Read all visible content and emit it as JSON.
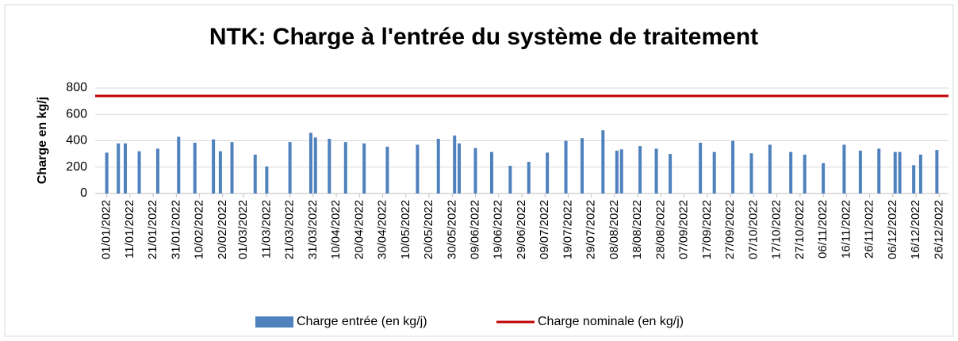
{
  "chart_data": {
    "type": "bar",
    "title": "NTK: Charge à l'entrée du système de traitement",
    "y_label": "Charge en kg/j",
    "ylim": [
      0,
      800
    ],
    "yticks": [
      0,
      200,
      400,
      600,
      800
    ],
    "grid": true,
    "xlim": [
      "27/12/2021",
      "30/12/2022"
    ],
    "xticks": [
      "01/01/2022",
      "11/01/2022",
      "21/01/2022",
      "31/01/2022",
      "10/02/2022",
      "20/02/2022",
      "01/03/2022",
      "11/03/2022",
      "21/03/2022",
      "31/03/2022",
      "10/04/2022",
      "20/04/2022",
      "30/04/2022",
      "10/05/2022",
      "20/05/2022",
      "30/05/2022",
      "09/06/2022",
      "19/06/2022",
      "29/06/2022",
      "09/07/2022",
      "19/07/2022",
      "29/07/2022",
      "08/08/2022",
      "18/08/2022",
      "28/08/2022",
      "07/09/2022",
      "17/09/2022",
      "27/09/2022",
      "07/10/2022",
      "17/10/2022",
      "27/10/2022",
      "06/11/2022",
      "16/11/2022",
      "26/11/2022",
      "06/12/2022",
      "16/12/2022",
      "26/12/2022"
    ],
    "legend": "bottom",
    "series": [
      {
        "name": "Charge entrée (en kg/j)",
        "color": "#4f81bd",
        "type": "bar",
        "x": [
          "01/01/2022",
          "06/01/2022",
          "09/01/2022",
          "15/01/2022",
          "23/01/2022",
          "01/02/2022",
          "08/02/2022",
          "16/02/2022",
          "19/02/2022",
          "24/02/2022",
          "06/03/2022",
          "11/03/2022",
          "21/03/2022",
          "30/03/2022",
          "01/04/2022",
          "07/04/2022",
          "14/04/2022",
          "22/04/2022",
          "02/05/2022",
          "15/05/2022",
          "24/05/2022",
          "31/05/2022",
          "02/06/2022",
          "09/06/2022",
          "16/06/2022",
          "24/06/2022",
          "02/07/2022",
          "10/07/2022",
          "18/07/2022",
          "25/07/2022",
          "03/08/2022",
          "09/08/2022",
          "11/08/2022",
          "19/08/2022",
          "26/08/2022",
          "01/09/2022",
          "14/09/2022",
          "20/09/2022",
          "28/09/2022",
          "06/10/2022",
          "14/10/2022",
          "23/10/2022",
          "29/10/2022",
          "06/11/2022",
          "15/11/2022",
          "22/11/2022",
          "30/11/2022",
          "07/12/2022",
          "09/12/2022",
          "15/12/2022",
          "18/12/2022",
          "25/12/2022"
        ],
        "values": [
          310,
          380,
          380,
          320,
          340,
          430,
          385,
          410,
          320,
          390,
          295,
          205,
          390,
          460,
          425,
          415,
          390,
          380,
          355,
          370,
          415,
          440,
          380,
          345,
          315,
          210,
          240,
          310,
          400,
          420,
          480,
          325,
          335,
          360,
          340,
          300,
          385,
          315,
          400,
          305,
          370,
          315,
          295,
          230,
          370,
          325,
          340,
          315,
          315,
          215,
          295,
          330
        ]
      },
      {
        "name": "Charge nominale (en kg/j)",
        "color": "#c00000",
        "type": "line",
        "x": [
          "27/12/2021",
          "30/12/2022"
        ],
        "values": [
          740,
          740
        ]
      }
    ]
  }
}
